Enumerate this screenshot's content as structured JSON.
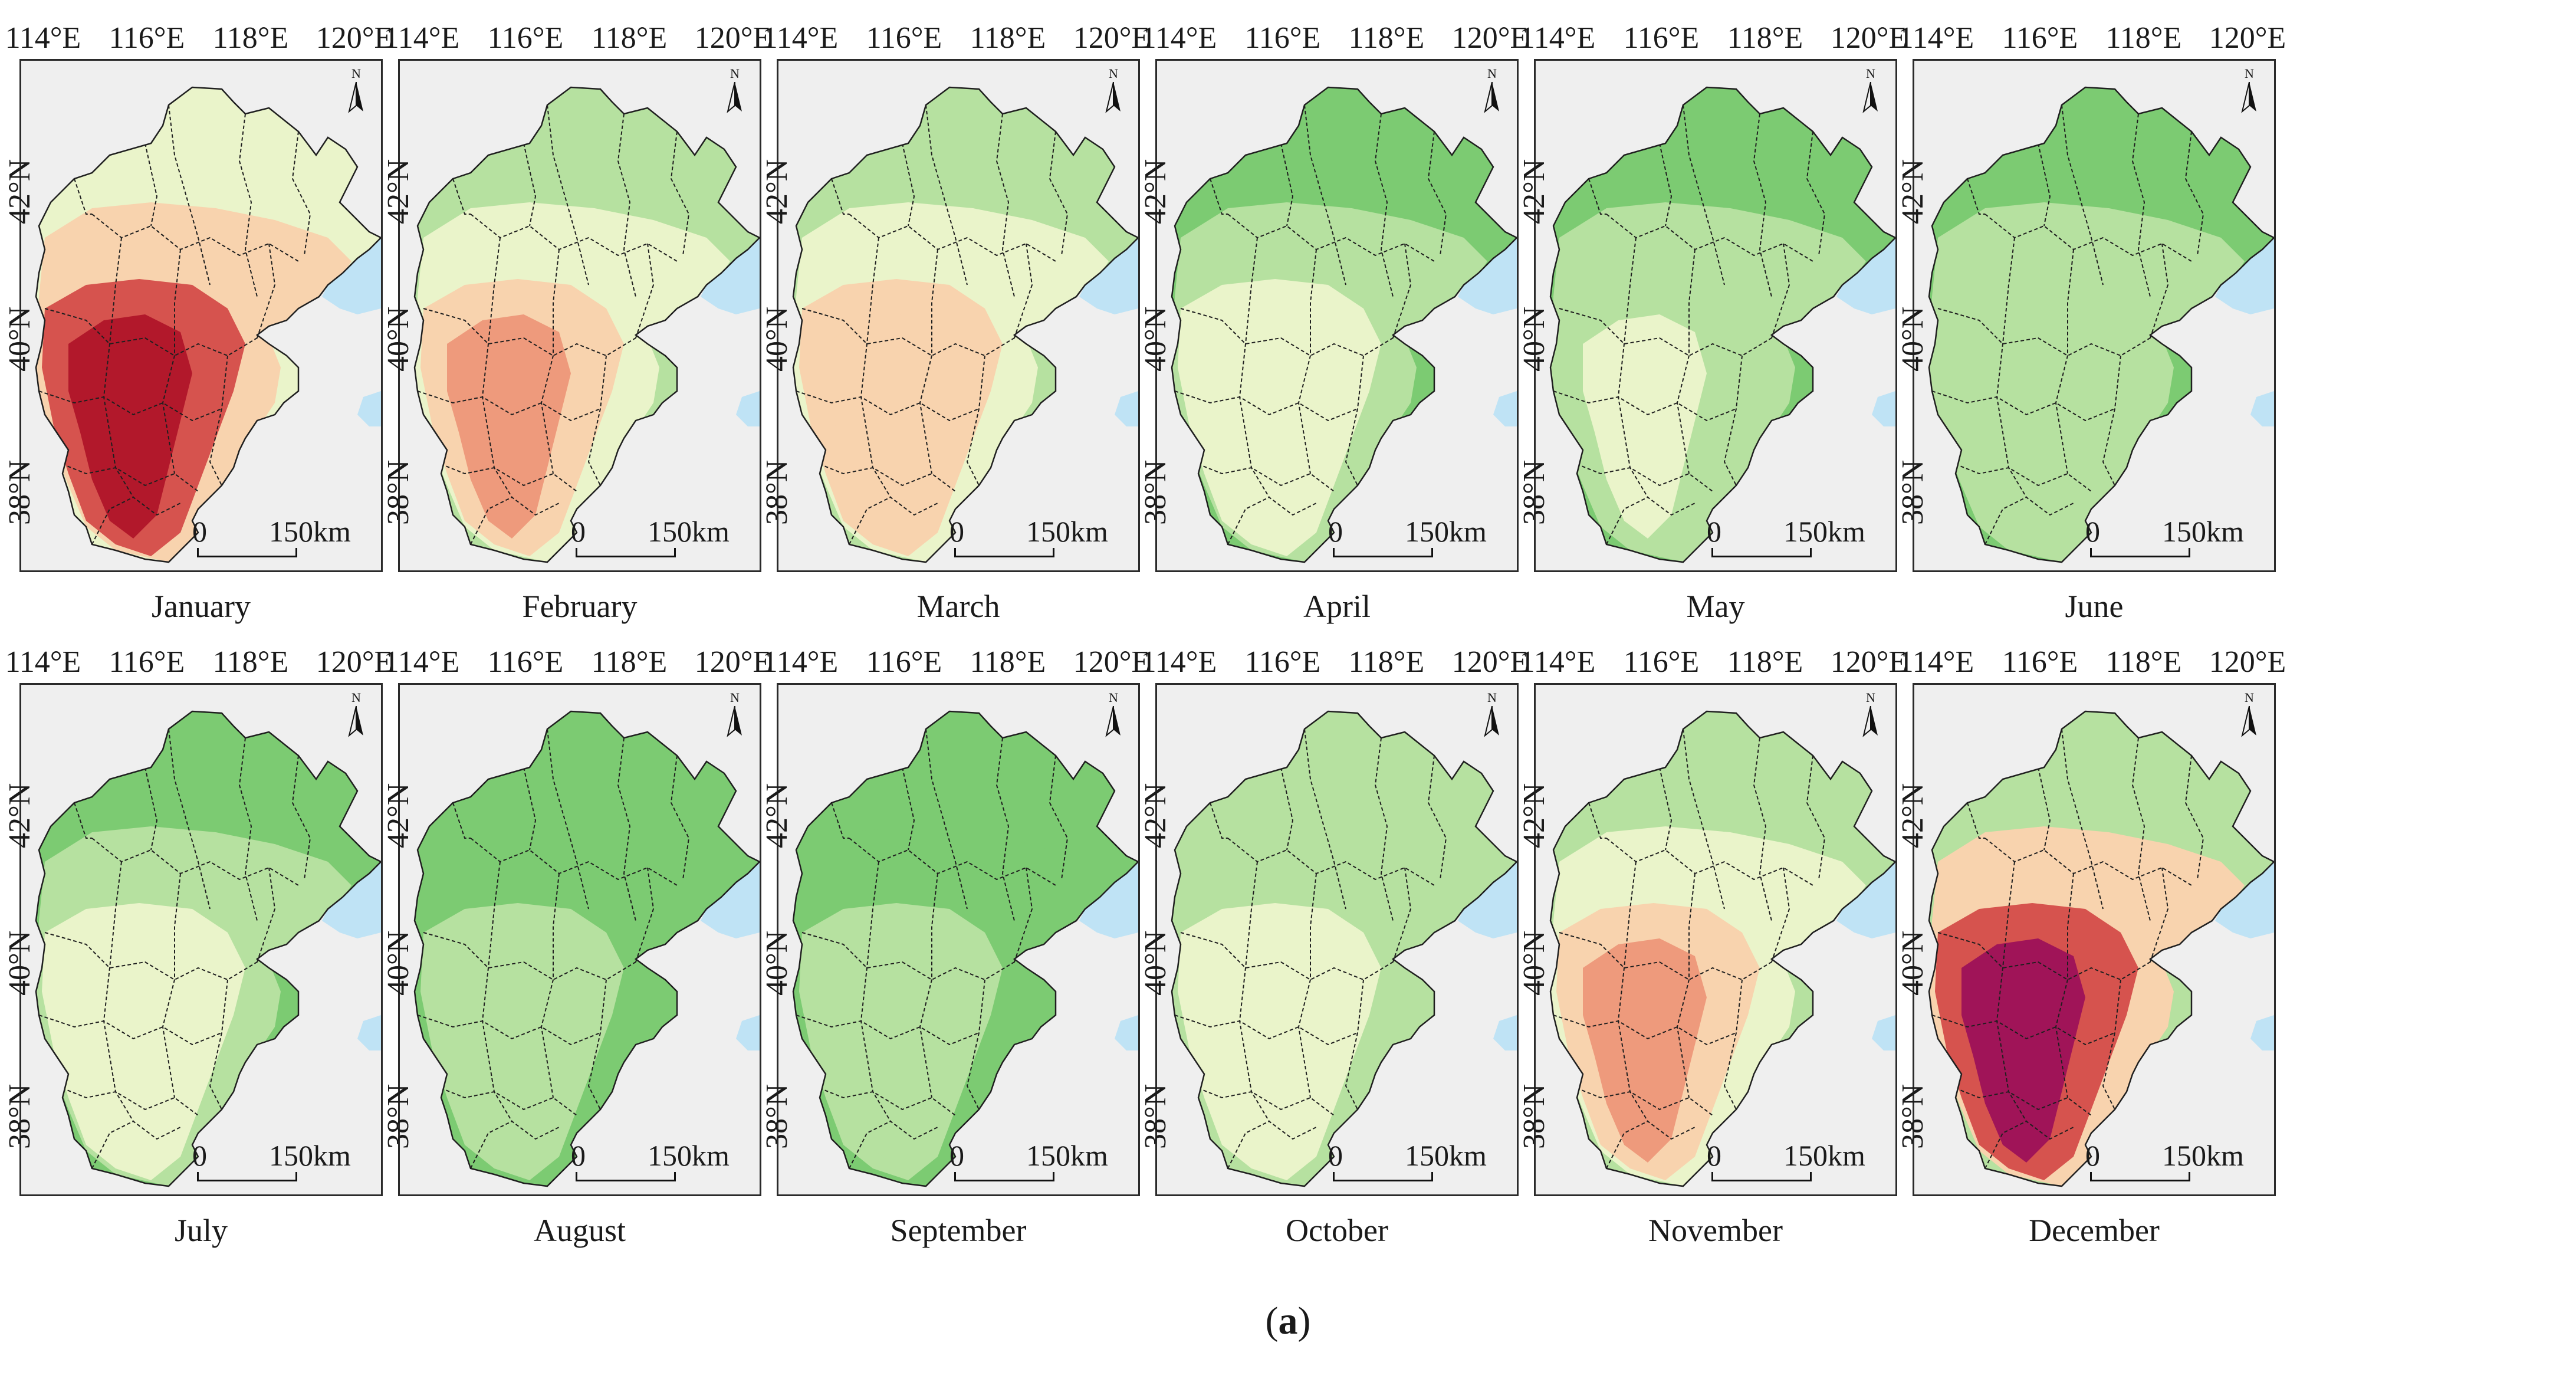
{
  "figure": {
    "caption_open": "(",
    "caption_letter": "a",
    "caption_close": ")",
    "lon_ticks": [
      "114°E",
      "116°E",
      "118°E",
      "120°E"
    ],
    "lat_ticks": [
      "42°N",
      "40°N",
      "38°N"
    ],
    "scale_zero": "0",
    "scale_distance": "150km",
    "north_symbol": "N",
    "north_icon": "north-arrow-icon"
  },
  "colors": {
    "background": "#efefef",
    "sea": "#bfe3f5",
    "boundary": "#1f1f1f",
    "levels": [
      "#b2182b",
      "#d6534e",
      "#ee9a7c",
      "#f8d3ae",
      "#eaf4ca",
      "#b6e1a0",
      "#7ccb72",
      "#a01458"
    ]
  },
  "panels": [
    {
      "month": "January",
      "zones": [
        4,
        3,
        1,
        0
      ]
    },
    {
      "month": "February",
      "zones": [
        5,
        4,
        3,
        2
      ]
    },
    {
      "month": "March",
      "zones": [
        5,
        4,
        3,
        3
      ]
    },
    {
      "month": "April",
      "zones": [
        6,
        5,
        4,
        4
      ]
    },
    {
      "month": "May",
      "zones": [
        6,
        5,
        5,
        4
      ]
    },
    {
      "month": "June",
      "zones": [
        6,
        5,
        5,
        5
      ]
    },
    {
      "month": "July",
      "zones": [
        6,
        5,
        4,
        4
      ]
    },
    {
      "month": "August",
      "zones": [
        6,
        6,
        5,
        5
      ]
    },
    {
      "month": "September",
      "zones": [
        6,
        6,
        5,
        5
      ]
    },
    {
      "month": "October",
      "zones": [
        5,
        5,
        4,
        4
      ]
    },
    {
      "month": "November",
      "zones": [
        5,
        4,
        3,
        2
      ]
    },
    {
      "month": "December",
      "zones": [
        5,
        3,
        1,
        7
      ]
    }
  ]
}
